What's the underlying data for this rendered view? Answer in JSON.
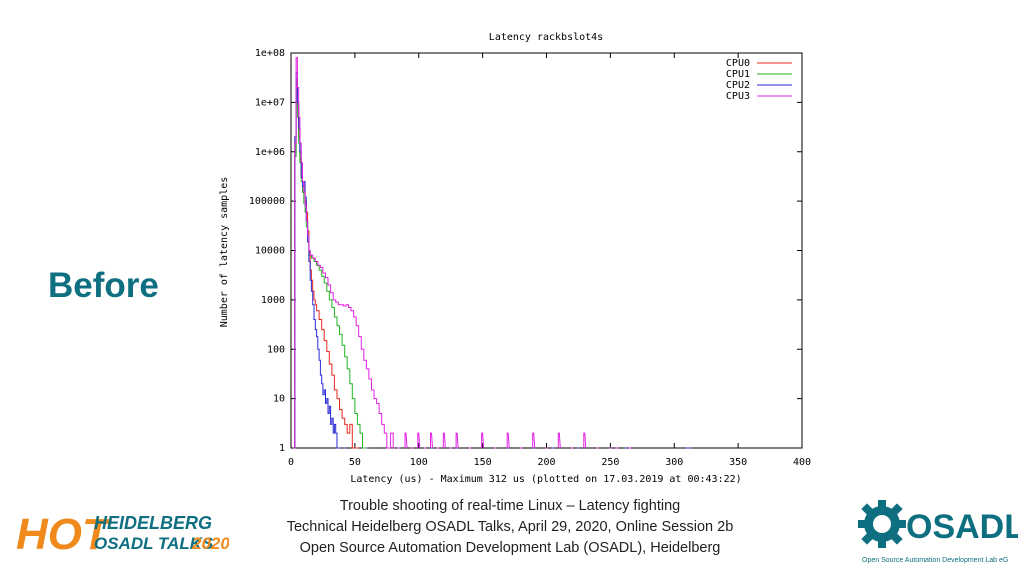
{
  "slide": {
    "side_label": "Before",
    "footer": [
      "Trouble shooting of real-time Linux – Latency fighting",
      "Technical Heidelberg OSADL Talks, April 29, 2020, Online Session 2b",
      "Open Source Automation Development Lab (OSADL), Heidelberg"
    ],
    "hot_logo": {
      "big": "HOT",
      "line1": "HEIDELBERG",
      "line2a": "OSADL TALKS",
      "line2b": "2020"
    },
    "osadl_logo": {
      "word": "OSADL",
      "tagline": "Open Source Automation Development Lab eG"
    },
    "colors": {
      "brand_teal": "#0e6f80",
      "hot_orange": "#f08a1c"
    }
  },
  "chart_data": {
    "type": "line",
    "title": "Latency rackbslot4s",
    "xlabel": "Latency (us) - Maximum 312 us (plotted on 17.03.2019 at 00:43:22)",
    "ylabel": "Number of latency samples",
    "xlim": [
      0,
      400
    ],
    "ylim": [
      1,
      100000000
    ],
    "yscale": "log",
    "xticks": [
      "0",
      "50",
      "100",
      "150",
      "200",
      "250",
      "300",
      "350",
      "400"
    ],
    "yticks": [
      "1",
      "10",
      "100",
      "1000",
      "10000",
      "100000",
      "1e+06",
      "1e+07",
      "1e+08"
    ],
    "legend_position": "top-right",
    "series": [
      {
        "name": "CPU0",
        "color": "#e8281e",
        "points": [
          [
            2,
            1
          ],
          [
            3,
            1000000
          ],
          [
            4,
            30000000
          ],
          [
            5,
            8000000
          ],
          [
            6,
            2000000
          ],
          [
            7,
            700000
          ],
          [
            8,
            300000
          ],
          [
            9,
            200000
          ],
          [
            10,
            150000
          ],
          [
            11,
            100000
          ],
          [
            12,
            60000
          ],
          [
            13,
            25000
          ],
          [
            14,
            10000
          ],
          [
            15,
            4000
          ],
          [
            16,
            2500
          ],
          [
            17,
            1500
          ],
          [
            18,
            1000
          ],
          [
            19,
            800
          ],
          [
            20,
            600
          ],
          [
            22,
            400
          ],
          [
            24,
            250
          ],
          [
            26,
            150
          ],
          [
            28,
            90
          ],
          [
            30,
            50
          ],
          [
            32,
            30
          ],
          [
            34,
            15
          ],
          [
            36,
            10
          ],
          [
            38,
            6
          ],
          [
            40,
            4
          ],
          [
            42,
            3
          ],
          [
            44,
            2
          ],
          [
            46,
            3
          ],
          [
            48,
            1
          ],
          [
            50,
            1
          ],
          [
            52,
            1
          ]
        ]
      },
      {
        "name": "CPU1",
        "color": "#22b422",
        "points": [
          [
            2,
            1
          ],
          [
            3,
            800000
          ],
          [
            4,
            30000000
          ],
          [
            5,
            5000000
          ],
          [
            6,
            1500000
          ],
          [
            7,
            600000
          ],
          [
            8,
            250000
          ],
          [
            9,
            150000
          ],
          [
            10,
            90000
          ],
          [
            11,
            60000
          ],
          [
            12,
            30000
          ],
          [
            13,
            15000
          ],
          [
            14,
            8000
          ],
          [
            16,
            7000
          ],
          [
            18,
            6000
          ],
          [
            20,
            5000
          ],
          [
            22,
            4000
          ],
          [
            24,
            3000
          ],
          [
            26,
            2200
          ],
          [
            28,
            1500
          ],
          [
            30,
            1000
          ],
          [
            32,
            700
          ],
          [
            34,
            450
          ],
          [
            36,
            300
          ],
          [
            38,
            200
          ],
          [
            40,
            120
          ],
          [
            42,
            70
          ],
          [
            44,
            40
          ],
          [
            46,
            20
          ],
          [
            48,
            10
          ],
          [
            50,
            5
          ],
          [
            52,
            3
          ],
          [
            54,
            2
          ],
          [
            56,
            1
          ],
          [
            58,
            1
          ]
        ]
      },
      {
        "name": "CPU2",
        "color": "#2a2ad6",
        "points": [
          [
            2,
            1
          ],
          [
            3,
            2000000
          ],
          [
            4,
            40000000
          ],
          [
            5,
            10000000
          ],
          [
            6,
            3000000
          ],
          [
            7,
            1000000
          ],
          [
            8,
            300000
          ],
          [
            9,
            200000
          ],
          [
            10,
            250000
          ],
          [
            11,
            120000
          ],
          [
            12,
            40000
          ],
          [
            13,
            15000
          ],
          [
            14,
            6000
          ],
          [
            15,
            2500
          ],
          [
            16,
            1500
          ],
          [
            17,
            800
          ],
          [
            18,
            400
          ],
          [
            19,
            250
          ],
          [
            20,
            180
          ],
          [
            21,
            100
          ],
          [
            22,
            60
          ],
          [
            23,
            30
          ],
          [
            24,
            20
          ],
          [
            25,
            12
          ],
          [
            26,
            15
          ],
          [
            27,
            8
          ],
          [
            28,
            10
          ],
          [
            29,
            5
          ],
          [
            30,
            7
          ],
          [
            31,
            3
          ],
          [
            32,
            4
          ],
          [
            33,
            2
          ],
          [
            34,
            3
          ],
          [
            35,
            2
          ],
          [
            36,
            1
          ],
          [
            37,
            1
          ],
          [
            38,
            1
          ],
          [
            42,
            1
          ],
          [
            60,
            1
          ],
          [
            85,
            1
          ],
          [
            110,
            1
          ],
          [
            125,
            1
          ],
          [
            130,
            1
          ],
          [
            140,
            1
          ],
          [
            160,
            1
          ],
          [
            170,
            1
          ],
          [
            190,
            1
          ],
          [
            205,
            1
          ],
          [
            225,
            1
          ],
          [
            250,
            1
          ],
          [
            262,
            1
          ],
          [
            310,
            1
          ],
          [
            312,
            1
          ]
        ]
      },
      {
        "name": "CPU3",
        "color": "#e020e0",
        "points": [
          [
            2,
            1
          ],
          [
            3,
            1500000
          ],
          [
            4,
            80000000
          ],
          [
            5,
            20000000
          ],
          [
            6,
            5000000
          ],
          [
            7,
            1500000
          ],
          [
            8,
            600000
          ],
          [
            9,
            250000
          ],
          [
            10,
            150000
          ],
          [
            11,
            80000
          ],
          [
            12,
            40000
          ],
          [
            13,
            20000
          ],
          [
            14,
            10000
          ],
          [
            15,
            8000
          ],
          [
            17,
            7000
          ],
          [
            19,
            6000
          ],
          [
            21,
            5000
          ],
          [
            23,
            4500
          ],
          [
            25,
            3500
          ],
          [
            27,
            2800
          ],
          [
            29,
            2000
          ],
          [
            31,
            1400
          ],
          [
            33,
            1000
          ],
          [
            35,
            900
          ],
          [
            37,
            800
          ],
          [
            39,
            800
          ],
          [
            41,
            750
          ],
          [
            43,
            800
          ],
          [
            45,
            700
          ],
          [
            47,
            600
          ],
          [
            49,
            450
          ],
          [
            51,
            300
          ],
          [
            53,
            180
          ],
          [
            55,
            100
          ],
          [
            57,
            60
          ],
          [
            59,
            40
          ],
          [
            61,
            25
          ],
          [
            63,
            15
          ],
          [
            65,
            10
          ],
          [
            67,
            8
          ],
          [
            69,
            5
          ],
          [
            71,
            3
          ],
          [
            73,
            2
          ],
          [
            75,
            1
          ],
          [
            78,
            2
          ],
          [
            80,
            1
          ],
          [
            84,
            1
          ],
          [
            90,
            2
          ],
          [
            95,
            1
          ],
          [
            100,
            2
          ],
          [
            105,
            1
          ],
          [
            110,
            2
          ],
          [
            115,
            1
          ],
          [
            120,
            2
          ],
          [
            125,
            1
          ],
          [
            130,
            2
          ],
          [
            140,
            1
          ],
          [
            150,
            2
          ],
          [
            160,
            1
          ],
          [
            170,
            2
          ],
          [
            180,
            1
          ],
          [
            190,
            2
          ],
          [
            200,
            1
          ],
          [
            210,
            2
          ],
          [
            220,
            1
          ],
          [
            230,
            2
          ],
          [
            240,
            1
          ],
          [
            250,
            1
          ],
          [
            255,
            1
          ],
          [
            265,
            1
          ]
        ]
      }
    ]
  }
}
